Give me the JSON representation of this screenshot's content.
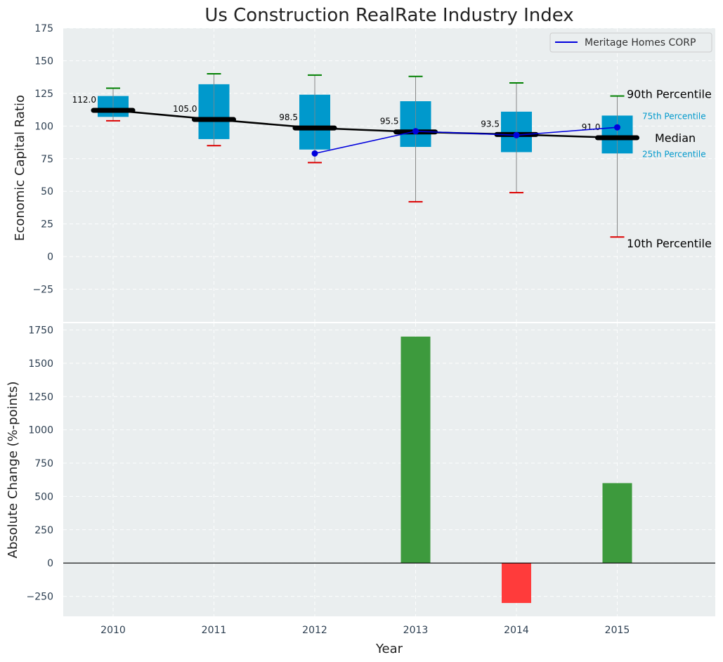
{
  "chart_data": [
    {
      "type": "box",
      "title": "Us Construction RealRate Industry Index",
      "xlabel": "",
      "ylabel": "Economic Capital Ratio",
      "ylim": [
        -50,
        175
      ],
      "yticks": [
        -25,
        0,
        25,
        50,
        75,
        100,
        125,
        150,
        175
      ],
      "ytick_labels": [
        "−25",
        "0",
        "25",
        "50",
        "75",
        "100",
        "125",
        "150",
        "175"
      ],
      "categories": [
        "2010",
        "2011",
        "2012",
        "2013",
        "2014",
        "2015"
      ],
      "boxes": [
        {
          "year": "2010",
          "p10": 104,
          "p25": 107,
          "median": 112.0,
          "p75": 123,
          "p90": 129,
          "median_label": "112.0"
        },
        {
          "year": "2011",
          "p10": 85,
          "p25": 90,
          "median": 105.0,
          "p75": 132,
          "p90": 140,
          "median_label": "105.0"
        },
        {
          "year": "2012",
          "p10": 72,
          "p25": 82,
          "median": 98.5,
          "p75": 124,
          "p90": 139,
          "median_label": "98.5"
        },
        {
          "year": "2013",
          "p10": 42,
          "p25": 84,
          "median": 95.5,
          "p75": 119,
          "p90": 138,
          "median_label": "95.5"
        },
        {
          "year": "2014",
          "p10": 49,
          "p25": 80,
          "median": 93.5,
          "p75": 111,
          "p90": 133,
          "median_label": "93.5"
        },
        {
          "year": "2015",
          "p10": 15,
          "p25": 79,
          "median": 91.0,
          "p75": 108,
          "p90": 123,
          "median_label": "91.0"
        }
      ],
      "series": [
        {
          "name": "Meritage Homes CORP",
          "color": "#0000dd",
          "x": [
            "2012",
            "2013",
            "2014",
            "2015"
          ],
          "values": [
            79,
            96,
            93,
            99
          ]
        }
      ],
      "legend": {
        "position": "top-right",
        "entries": [
          "Meritage Homes CORP"
        ]
      },
      "annotations": {
        "p90": "90th Percentile",
        "p75": "75th Percentile",
        "median": "Median",
        "p25": "25th Percentile",
        "p10": "10th Percentile"
      },
      "colors": {
        "box": "#0099cc",
        "median": "#000000",
        "p90_cap": "#008000",
        "p10_cap": "#dd0000",
        "whisker": "#888888",
        "background": "#eaeeef"
      }
    },
    {
      "type": "bar",
      "title": "",
      "xlabel": "Year",
      "ylabel": "Absolute Change (%-points)",
      "ylim": [
        -400,
        1800
      ],
      "yticks": [
        -250,
        0,
        250,
        500,
        750,
        1000,
        1250,
        1500,
        1750
      ],
      "ytick_labels": [
        "−250",
        "0",
        "250",
        "500",
        "750",
        "1000",
        "1250",
        "1500",
        "1750"
      ],
      "categories": [
        "2010",
        "2011",
        "2012",
        "2013",
        "2014",
        "2015"
      ],
      "values": [
        0,
        0,
        0,
        1700,
        -300,
        600
      ],
      "colors": {
        "positive": "#3d9a3d",
        "negative": "#ff3b3b",
        "zero_line": "#000000"
      }
    }
  ]
}
